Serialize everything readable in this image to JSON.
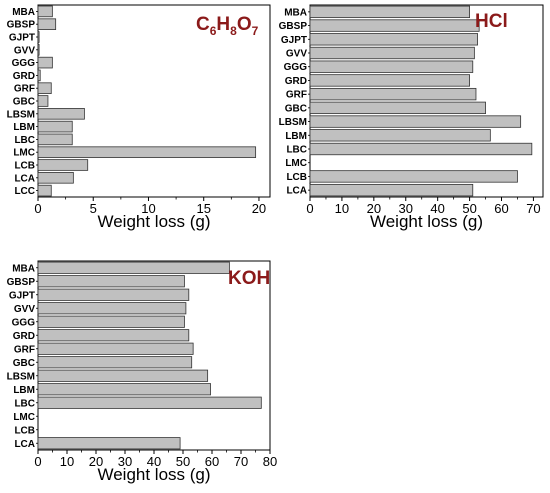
{
  "chart_data": [
    {
      "type": "bar",
      "orientation": "horizontal",
      "title": "C6H8O7",
      "title_parts": [
        "C",
        "6",
        "H",
        "8",
        "O",
        "7"
      ],
      "xlabel": "Weight loss (g)",
      "xlim": [
        0,
        21
      ],
      "xticks": [
        0,
        5,
        10,
        15,
        20
      ],
      "categories": [
        "MBA",
        "GBSP",
        "GJPT",
        "GVV",
        "GGG",
        "GRD",
        "GRF",
        "GBC",
        "LBSM",
        "LBM",
        "LBC",
        "LMC",
        "LCB",
        "LCA",
        "LCC"
      ],
      "values": [
        1.3,
        1.6,
        0.1,
        0.1,
        1.3,
        0.2,
        1.2,
        0.9,
        4.2,
        3.1,
        3.1,
        19.7,
        4.5,
        3.2,
        1.2
      ],
      "title_color": "#8b1a1a",
      "bar_color": "#c0c0c0"
    },
    {
      "type": "bar",
      "orientation": "horizontal",
      "title": "HCl",
      "xlabel": "Weight loss (g)",
      "xlim": [
        0,
        73
      ],
      "xticks": [
        0,
        10,
        20,
        30,
        40,
        50,
        60,
        70
      ],
      "categories": [
        "MBA",
        "GBSP",
        "GJPT",
        "GVV",
        "GGG",
        "GRD",
        "GRF",
        "GBC",
        "LBSM",
        "LBM",
        "LBC",
        "LMC",
        "LCB",
        "LCA"
      ],
      "values": [
        50,
        53,
        52.5,
        51.5,
        51,
        50,
        52,
        55,
        66,
        56.5,
        69.5,
        0,
        65,
        51
      ],
      "title_color": "#8b1a1a",
      "bar_color": "#c0c0c0"
    },
    {
      "type": "bar",
      "orientation": "horizontal",
      "title": "KOH",
      "xlabel": "Weight loss (g)",
      "xlim": [
        0,
        80
      ],
      "xticks": [
        0,
        10,
        20,
        30,
        40,
        50,
        60,
        70,
        80
      ],
      "categories": [
        "MBA",
        "GBSP",
        "GJPT",
        "GVV",
        "GGG",
        "GRD",
        "GRF",
        "GBC",
        "LBSM",
        "LBM",
        "LBC",
        "LMC",
        "LCB",
        "LCA"
      ],
      "values": [
        66,
        50.5,
        52,
        51,
        50.5,
        52,
        53.5,
        53,
        58.5,
        59.5,
        77,
        0,
        0,
        49
      ],
      "title_color": "#8b1a1a",
      "bar_color": "#c0c0c0"
    }
  ]
}
